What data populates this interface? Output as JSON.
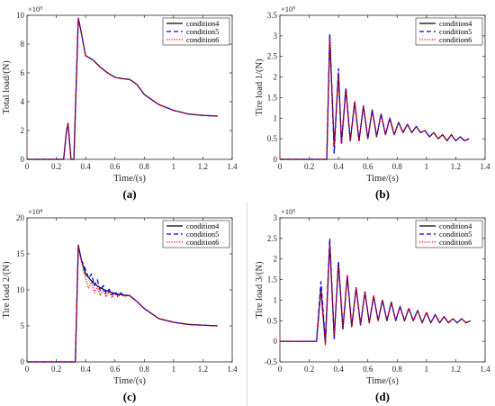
{
  "colors": {
    "condition4": "#000000",
    "condition5": "#0000ff",
    "condition6": "#ff0000"
  },
  "chart_data": [
    {
      "type": "line",
      "caption": "(a)",
      "xlabel": "Time/(s)",
      "ylabel": "Total load/(N)",
      "y_exponent": "×10⁵",
      "xlim": [
        0,
        1.4
      ],
      "ylim": [
        0,
        10
      ],
      "xticks": [
        "0",
        "0.2",
        "0.4",
        "0.6",
        "0.8",
        "1",
        "1.2",
        "1.4"
      ],
      "yticks": [
        "0",
        "2",
        "4",
        "6",
        "8",
        "10"
      ],
      "legend_position": "top-right",
      "series": [
        {
          "name": "condition4",
          "style": "solid",
          "x": [
            0,
            0.25,
            0.27,
            0.28,
            0.3,
            0.32,
            0.35,
            0.37,
            0.4,
            0.45,
            0.5,
            0.55,
            0.6,
            0.65,
            0.7,
            0.75,
            0.8,
            0.9,
            1.0,
            1.1,
            1.2,
            1.3
          ],
          "y": [
            0,
            0,
            2.0,
            2.5,
            0,
            0,
            9.8,
            8.8,
            7.2,
            6.9,
            6.4,
            6.0,
            5.7,
            5.6,
            5.55,
            5.2,
            4.5,
            3.8,
            3.4,
            3.15,
            3.05,
            3.0
          ]
        },
        {
          "name": "condition5",
          "style": "dashed",
          "x": [
            0,
            0.25,
            0.27,
            0.28,
            0.3,
            0.32,
            0.35,
            0.37,
            0.4,
            0.45,
            0.5,
            0.55,
            0.6,
            0.65,
            0.7,
            0.75,
            0.8,
            0.9,
            1.0,
            1.1,
            1.2,
            1.3
          ],
          "y": [
            0,
            0,
            2.0,
            2.5,
            0,
            0,
            9.8,
            8.8,
            7.2,
            6.9,
            6.4,
            6.0,
            5.7,
            5.6,
            5.55,
            5.2,
            4.5,
            3.8,
            3.4,
            3.15,
            3.05,
            3.0
          ]
        },
        {
          "name": "condition6",
          "style": "dotted",
          "x": [
            0,
            0.25,
            0.27,
            0.28,
            0.3,
            0.32,
            0.35,
            0.37,
            0.4,
            0.45,
            0.5,
            0.55,
            0.6,
            0.65,
            0.7,
            0.75,
            0.8,
            0.9,
            1.0,
            1.1,
            1.2,
            1.3
          ],
          "y": [
            0,
            0,
            2.0,
            2.5,
            0,
            0,
            9.8,
            8.8,
            7.2,
            6.9,
            6.4,
            6.0,
            5.7,
            5.6,
            5.55,
            5.2,
            4.5,
            3.8,
            3.4,
            3.15,
            3.05,
            3.0
          ]
        }
      ]
    },
    {
      "type": "line",
      "caption": "(b)",
      "xlabel": "Time/(s)",
      "ylabel": "Tire load 1/(N)",
      "y_exponent": "×10⁵",
      "xlim": [
        0,
        1.4
      ],
      "ylim": [
        0,
        3.5
      ],
      "xticks": [
        "0",
        "0.2",
        "0.4",
        "0.6",
        "0.8",
        "1",
        "1.2",
        "1.4"
      ],
      "yticks": [
        "0",
        "0.5",
        "1",
        "1.5",
        "2",
        "2.5",
        "3",
        "3.5"
      ],
      "legend_position": "top-right",
      "series": [
        {
          "name": "condition4",
          "style": "solid",
          "x": [
            0,
            0.32,
            0.34,
            0.37,
            0.4,
            0.42,
            0.45,
            0.48,
            0.51,
            0.54,
            0.57,
            0.6,
            0.63,
            0.66,
            0.69,
            0.72,
            0.75,
            0.78,
            0.81,
            0.84,
            0.87,
            0.9,
            0.93,
            0.96,
            0.99,
            1.02,
            1.05,
            1.08,
            1.11,
            1.14,
            1.17,
            1.2,
            1.23,
            1.26,
            1.29
          ],
          "y": [
            0,
            0,
            3.0,
            0.3,
            2.1,
            0.4,
            1.7,
            0.45,
            1.4,
            0.45,
            1.3,
            0.5,
            1.2,
            0.55,
            1.1,
            0.6,
            1.0,
            0.6,
            0.9,
            0.65,
            0.85,
            0.65,
            0.8,
            0.65,
            0.7,
            0.55,
            0.65,
            0.5,
            0.6,
            0.45,
            0.6,
            0.45,
            0.55,
            0.45,
            0.5
          ]
        },
        {
          "name": "condition5",
          "style": "dashed",
          "x": [
            0,
            0.32,
            0.34,
            0.37,
            0.4,
            0.42,
            0.45,
            0.48,
            0.51,
            0.54,
            0.57,
            0.6,
            0.63,
            0.66,
            0.69,
            0.72,
            0.75,
            0.78,
            0.81,
            0.84,
            0.87,
            0.9,
            0.93,
            0.96,
            0.99,
            1.02,
            1.05,
            1.08,
            1.11,
            1.14,
            1.17,
            1.2,
            1.23,
            1.26,
            1.29
          ],
          "y": [
            0,
            0,
            3.05,
            0.15,
            2.2,
            0.35,
            1.75,
            0.45,
            1.4,
            0.45,
            1.3,
            0.5,
            1.2,
            0.55,
            1.1,
            0.6,
            1.0,
            0.6,
            0.9,
            0.65,
            0.85,
            0.65,
            0.8,
            0.65,
            0.7,
            0.55,
            0.65,
            0.5,
            0.6,
            0.45,
            0.6,
            0.45,
            0.55,
            0.45,
            0.5
          ]
        },
        {
          "name": "condition6",
          "style": "dotted",
          "x": [
            0,
            0.32,
            0.34,
            0.37,
            0.4,
            0.42,
            0.45,
            0.48,
            0.51,
            0.54,
            0.57,
            0.6,
            0.63,
            0.66,
            0.69,
            0.72,
            0.75,
            0.78,
            0.81,
            0.84,
            0.87,
            0.9,
            0.93,
            0.96,
            0.99,
            1.02,
            1.05,
            1.08,
            1.11,
            1.14,
            1.17,
            1.2,
            1.23,
            1.26,
            1.29
          ],
          "y": [
            0,
            0,
            2.95,
            0.35,
            2.05,
            0.4,
            1.7,
            0.45,
            1.4,
            0.45,
            1.3,
            0.5,
            1.2,
            0.55,
            1.1,
            0.6,
            1.0,
            0.6,
            0.9,
            0.65,
            0.85,
            0.65,
            0.8,
            0.65,
            0.7,
            0.55,
            0.65,
            0.5,
            0.6,
            0.45,
            0.6,
            0.45,
            0.55,
            0.45,
            0.5
          ]
        }
      ]
    },
    {
      "type": "line",
      "caption": "(c)",
      "xlabel": "Time/(s)",
      "ylabel": "Tire load 2/(N)",
      "y_exponent": "×10⁴",
      "xlim": [
        0,
        1.4
      ],
      "ylim": [
        0,
        20
      ],
      "xticks": [
        "0",
        "0.2",
        "0.4",
        "0.6",
        "0.8",
        "1",
        "1.2",
        "1.4"
      ],
      "yticks": [
        "0",
        "5",
        "10",
        "15",
        "20"
      ],
      "legend_position": "top-right",
      "series": [
        {
          "name": "condition4",
          "style": "solid",
          "x": [
            0,
            0.33,
            0.35,
            0.37,
            0.4,
            0.45,
            0.5,
            0.55,
            0.6,
            0.65,
            0.7,
            0.75,
            0.8,
            0.9,
            1.0,
            1.1,
            1.2,
            1.3
          ],
          "y": [
            0,
            0,
            16.2,
            14.2,
            12.2,
            11.0,
            10.3,
            9.8,
            9.5,
            9.3,
            9.2,
            8.4,
            7.4,
            6.0,
            5.5,
            5.2,
            5.1,
            5.0
          ]
        },
        {
          "name": "condition5",
          "style": "dashed",
          "x": [
            0,
            0.33,
            0.35,
            0.37,
            0.4,
            0.42,
            0.44,
            0.46,
            0.48,
            0.5,
            0.52,
            0.54,
            0.56,
            0.58,
            0.6,
            0.62,
            0.64,
            0.66,
            0.7,
            0.75,
            0.8,
            0.9,
            1.0,
            1.1,
            1.2,
            1.3
          ],
          "y": [
            0,
            0,
            16.2,
            14.2,
            12.8,
            11.6,
            12.2,
            10.6,
            11.4,
            9.9,
            10.6,
            9.5,
            10.1,
            9.3,
            9.8,
            9.2,
            9.6,
            9.2,
            9.2,
            8.4,
            7.4,
            6.0,
            5.5,
            5.2,
            5.1,
            5.0
          ]
        },
        {
          "name": "condition6",
          "style": "dotted",
          "x": [
            0,
            0.33,
            0.35,
            0.37,
            0.4,
            0.42,
            0.44,
            0.46,
            0.48,
            0.5,
            0.52,
            0.54,
            0.56,
            0.58,
            0.6,
            0.62,
            0.64,
            0.66,
            0.7,
            0.75,
            0.8,
            0.9,
            1.0,
            1.1,
            1.2,
            1.3
          ],
          "y": [
            0,
            0,
            16.0,
            14.0,
            11.6,
            10.2,
            11.1,
            9.6,
            10.5,
            9.2,
            10.0,
            9.0,
            9.7,
            8.9,
            9.5,
            9.0,
            9.4,
            9.1,
            9.2,
            8.4,
            7.4,
            6.0,
            5.5,
            5.2,
            5.1,
            5.0
          ]
        }
      ]
    },
    {
      "type": "line",
      "caption": "(d)",
      "xlabel": "Time/(s)",
      "ylabel": "Tire load 3/(N)",
      "y_exponent": "×10⁵",
      "xlim": [
        0,
        1.4
      ],
      "ylim": [
        -0.5,
        3
      ],
      "xticks": [
        "0",
        "0.2",
        "0.4",
        "0.6",
        "0.8",
        "1",
        "1.2",
        "1.4"
      ],
      "yticks": [
        "-0.5",
        "0",
        "0.5",
        "1",
        "1.5",
        "2",
        "2.5",
        "3"
      ],
      "legend_position": "top-right",
      "series": [
        {
          "name": "condition4",
          "style": "solid",
          "x": [
            0,
            0.25,
            0.28,
            0.31,
            0.34,
            0.37,
            0.4,
            0.43,
            0.46,
            0.49,
            0.52,
            0.55,
            0.58,
            0.61,
            0.64,
            0.67,
            0.7,
            0.73,
            0.76,
            0.79,
            0.82,
            0.85,
            0.88,
            0.91,
            0.94,
            0.97,
            1.0,
            1.03,
            1.06,
            1.09,
            1.12,
            1.15,
            1.18,
            1.21,
            1.24,
            1.27,
            1.3
          ],
          "y": [
            0,
            0,
            1.3,
            -0.05,
            2.4,
            0.1,
            1.9,
            0.3,
            1.6,
            0.35,
            1.3,
            0.4,
            1.2,
            0.45,
            1.1,
            0.5,
            1.0,
            0.5,
            0.95,
            0.5,
            0.85,
            0.5,
            0.8,
            0.5,
            0.75,
            0.45,
            0.7,
            0.45,
            0.65,
            0.45,
            0.6,
            0.45,
            0.55,
            0.45,
            0.55,
            0.45,
            0.5
          ]
        },
        {
          "name": "condition5",
          "style": "dashed",
          "x": [
            0,
            0.25,
            0.28,
            0.31,
            0.34,
            0.37,
            0.4,
            0.43,
            0.46,
            0.49,
            0.52,
            0.55,
            0.58,
            0.61,
            0.64,
            0.67,
            0.7,
            0.73,
            0.76,
            0.79,
            0.82,
            0.85,
            0.88,
            0.91,
            0.94,
            0.97,
            1.0,
            1.03,
            1.06,
            1.09,
            1.12,
            1.15,
            1.18,
            1.21,
            1.24,
            1.27,
            1.3
          ],
          "y": [
            0,
            0,
            1.45,
            0.0,
            2.5,
            0.05,
            1.95,
            0.3,
            1.6,
            0.35,
            1.3,
            0.4,
            1.2,
            0.45,
            1.1,
            0.5,
            1.0,
            0.5,
            0.95,
            0.5,
            0.85,
            0.5,
            0.8,
            0.5,
            0.75,
            0.45,
            0.7,
            0.45,
            0.65,
            0.45,
            0.6,
            0.45,
            0.55,
            0.45,
            0.55,
            0.45,
            0.5
          ]
        },
        {
          "name": "condition6",
          "style": "dotted",
          "x": [
            0,
            0.25,
            0.28,
            0.31,
            0.34,
            0.37,
            0.4,
            0.43,
            0.46,
            0.49,
            0.52,
            0.55,
            0.58,
            0.61,
            0.64,
            0.67,
            0.7,
            0.73,
            0.76,
            0.79,
            0.82,
            0.85,
            0.88,
            0.91,
            0.94,
            0.97,
            1.0,
            1.03,
            1.06,
            1.09,
            1.12,
            1.15,
            1.18,
            1.21,
            1.24,
            1.27,
            1.3
          ],
          "y": [
            0,
            0,
            1.2,
            -0.1,
            2.35,
            0.15,
            1.85,
            0.3,
            1.6,
            0.35,
            1.3,
            0.4,
            1.2,
            0.45,
            1.1,
            0.5,
            1.0,
            0.5,
            0.95,
            0.5,
            0.85,
            0.5,
            0.8,
            0.5,
            0.75,
            0.45,
            0.7,
            0.45,
            0.65,
            0.45,
            0.6,
            0.45,
            0.55,
            0.45,
            0.55,
            0.45,
            0.5
          ]
        }
      ]
    }
  ]
}
